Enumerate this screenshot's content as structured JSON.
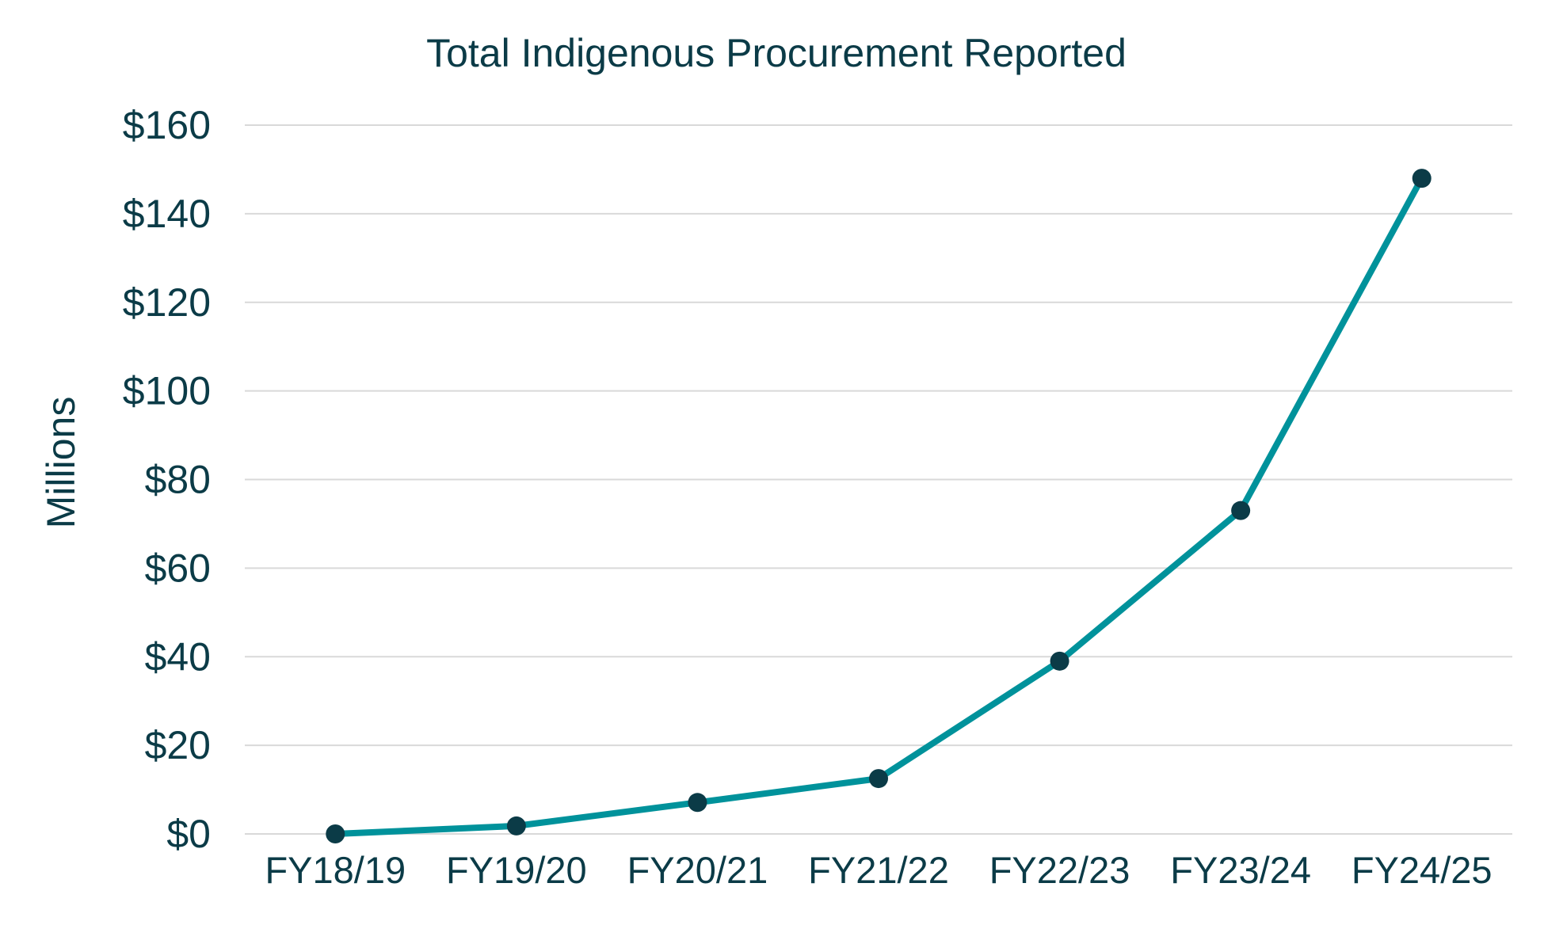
{
  "chart_data": {
    "type": "line",
    "title": "Total Indigenous Procurement Reported",
    "ylabel": "Millions",
    "xlabel": "",
    "categories": [
      "FY18/19",
      "FY19/20",
      "FY20/21",
      "FY21/22",
      "FY22/23",
      "FY23/24",
      "FY24/25"
    ],
    "series": [
      {
        "values": [
          0,
          1.8,
          7.1,
          12.5,
          39,
          73,
          148
        ]
      }
    ],
    "ylim": [
      0,
      160
    ],
    "yticks": [
      0,
      20,
      40,
      60,
      80,
      100,
      120,
      140,
      160
    ],
    "ytick_labels": [
      "$0",
      "$20",
      "$40",
      "$60",
      "$80",
      "$100",
      "$120",
      "$140",
      "$160"
    ],
    "grid": true,
    "legend": "none",
    "colors": {
      "line": "#00929B",
      "marker": "#0B3B47",
      "text": "#0B3B47",
      "grid": "#D9D9D9"
    }
  }
}
